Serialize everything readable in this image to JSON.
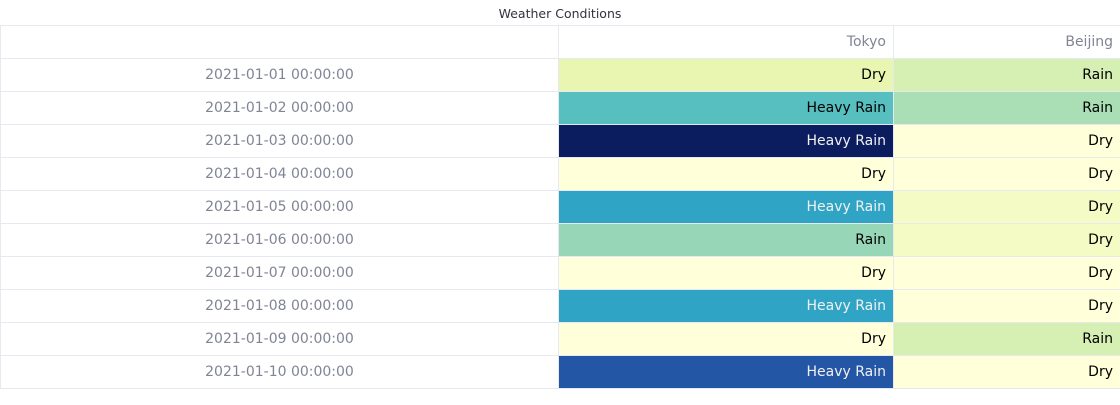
{
  "title": "Weather Conditions",
  "chart_data": {
    "type": "table",
    "title": "Weather Conditions",
    "columns": [
      "Tokyo",
      "Beijing"
    ],
    "rows": [
      {
        "index": "2021-01-01 00:00:00",
        "cells": [
          {
            "text": "Dry",
            "bg": "#e9f6b1",
            "fg": "#000000"
          },
          {
            "text": "Rain",
            "bg": "#d6efb3",
            "fg": "#000000"
          }
        ]
      },
      {
        "index": "2021-01-02 00:00:00",
        "cells": [
          {
            "text": "Heavy Rain",
            "bg": "#57bfc0",
            "fg": "#000000"
          },
          {
            "text": "Rain",
            "bg": "#aadeb4",
            "fg": "#000000"
          }
        ]
      },
      {
        "index": "2021-01-03 00:00:00",
        "cells": [
          {
            "text": "Heavy Rain",
            "bg": "#0b1d5e",
            "fg": "#f1f1f1"
          },
          {
            "text": "Dry",
            "bg": "#ffffd9",
            "fg": "#000000"
          }
        ]
      },
      {
        "index": "2021-01-04 00:00:00",
        "cells": [
          {
            "text": "Dry",
            "bg": "#ffffd9",
            "fg": "#000000"
          },
          {
            "text": "Dry",
            "bg": "#ffffd9",
            "fg": "#000000"
          }
        ]
      },
      {
        "index": "2021-01-05 00:00:00",
        "cells": [
          {
            "text": "Heavy Rain",
            "bg": "#2fa4c5",
            "fg": "#f1f1f1"
          },
          {
            "text": "Dry",
            "bg": "#f5fbc5",
            "fg": "#000000"
          }
        ]
      },
      {
        "index": "2021-01-06 00:00:00",
        "cells": [
          {
            "text": "Rain",
            "bg": "#98d6b8",
            "fg": "#000000"
          },
          {
            "text": "Dry",
            "bg": "#f5fbc5",
            "fg": "#000000"
          }
        ]
      },
      {
        "index": "2021-01-07 00:00:00",
        "cells": [
          {
            "text": "Dry",
            "bg": "#ffffd9",
            "fg": "#000000"
          },
          {
            "text": "Dry",
            "bg": "#ffffd9",
            "fg": "#000000"
          }
        ]
      },
      {
        "index": "2021-01-08 00:00:00",
        "cells": [
          {
            "text": "Heavy Rain",
            "bg": "#2fa4c5",
            "fg": "#f1f1f1"
          },
          {
            "text": "Dry",
            "bg": "#ffffd9",
            "fg": "#000000"
          }
        ]
      },
      {
        "index": "2021-01-09 00:00:00",
        "cells": [
          {
            "text": "Dry",
            "bg": "#ffffd9",
            "fg": "#000000"
          },
          {
            "text": "Rain",
            "bg": "#d6efb3",
            "fg": "#000000"
          }
        ]
      },
      {
        "index": "2021-01-10 00:00:00",
        "cells": [
          {
            "text": "Heavy Rain",
            "bg": "#2456a6",
            "fg": "#f1f1f1"
          },
          {
            "text": "Dry",
            "bg": "#ffffd9",
            "fg": "#000000"
          }
        ]
      }
    ]
  }
}
